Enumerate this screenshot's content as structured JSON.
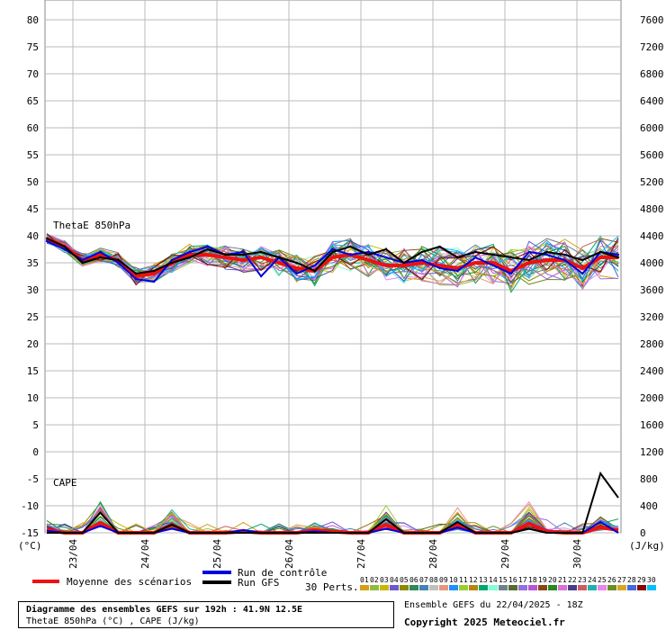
{
  "chart_data": {
    "type": "line",
    "title": "Diagramme des ensembles GEFS sur 192h : 41.9N 12.5E",
    "subtitle": "ThetaE 850hPa (°C) , CAPE (J/kg)",
    "source": "Ensemble GEFS du 22/04/2025 - 18Z",
    "copyright": "Copyright 2025 Meteociel.fr",
    "panel_label_thetae": "ThetaE 850hPa",
    "panel_label_cape": "CAPE",
    "left_axis": {
      "unit": "(°C)",
      "ylim": [
        -15,
        80
      ],
      "ticks": [
        -15,
        -10,
        -5,
        0,
        5,
        10,
        15,
        20,
        25,
        30,
        35,
        40,
        45,
        50,
        55,
        60,
        65,
        70,
        75,
        80
      ]
    },
    "right_axis": {
      "unit": "(J/kg)",
      "ylim": [
        0,
        7600
      ],
      "ticks": [
        0,
        400,
        800,
        1200,
        1600,
        2000,
        2400,
        2800,
        3200,
        3600,
        4000,
        4400,
        4800,
        5200,
        5600,
        6000,
        6400,
        6800,
        7200,
        7600
      ]
    },
    "dates": [
      "23/04",
      "24/04",
      "25/04",
      "26/04",
      "27/04",
      "28/04",
      "29/04",
      "30/04"
    ],
    "x_hours": [
      0,
      6,
      12,
      18,
      24,
      30,
      36,
      42,
      48,
      54,
      60,
      66,
      72,
      78,
      84,
      90,
      96,
      102,
      108,
      114,
      120,
      126,
      132,
      138,
      144,
      150,
      156,
      162,
      168,
      174,
      180,
      186,
      192
    ],
    "legend": {
      "mean": "Moyenne des scénarios",
      "control": "Run de contrôle",
      "gfs": "Run GFS",
      "perts": "30 Perts."
    },
    "members": [
      "01",
      "02",
      "03",
      "04",
      "05",
      "06",
      "07",
      "08",
      "09",
      "10",
      "11",
      "12",
      "13",
      "14",
      "15",
      "16",
      "17",
      "18",
      "19",
      "20",
      "21",
      "22",
      "23",
      "24",
      "25",
      "26",
      "27",
      "28",
      "29",
      "30"
    ],
    "member_colors": [
      "#d4a017",
      "#8fbc3f",
      "#c9b800",
      "#6a5acd",
      "#8b8b00",
      "#2e8b57",
      "#4682b4",
      "#c0c0c0",
      "#e9967a",
      "#1e90ff",
      "#9acd32",
      "#b8860b",
      "#00a86b",
      "#7fffd4",
      "#708090",
      "#556b2f",
      "#9370db",
      "#ba55d3",
      "#8b4513",
      "#228b22",
      "#da70d6",
      "#483d8b",
      "#cd5c5c",
      "#20b2aa",
      "#ee82ee",
      "#6b8e23",
      "#daa520",
      "#4169e1",
      "#8b0000",
      "#00bfff"
    ],
    "series_thetae": [
      {
        "name": "Moyenne des scénarios",
        "color": "#ee1111",
        "values": [
          39.5,
          38,
          35.5,
          36.5,
          35.5,
          32.5,
          33,
          35,
          36.5,
          36.5,
          36,
          35.5,
          36,
          35,
          34,
          33.5,
          36,
          36.5,
          35.5,
          34.5,
          34.5,
          35,
          34.5,
          34,
          35,
          35,
          33.5,
          35,
          35.5,
          35.5,
          34,
          36,
          36
        ]
      },
      {
        "name": "Run de contrôle",
        "color": "#0000dd",
        "values": [
          39,
          37.5,
          35.5,
          37,
          35,
          32,
          31.5,
          35.5,
          37,
          38,
          36.5,
          37,
          32.5,
          36,
          33,
          34.5,
          37.5,
          36.5,
          37,
          36,
          35,
          35.5,
          34,
          33.5,
          36,
          34.5,
          33,
          37,
          36.5,
          35.5,
          33,
          37,
          36.5
        ]
      },
      {
        "name": "Run GFS",
        "color": "#000000",
        "values": [
          39.5,
          38,
          35,
          36,
          35.5,
          33,
          33.5,
          35,
          36,
          37.5,
          36.5,
          36.5,
          37,
          36,
          35,
          33.5,
          37,
          38,
          36.5,
          37.5,
          35,
          37,
          38,
          36,
          37,
          36.5,
          36,
          35.5,
          37,
          36.5,
          35.5,
          37,
          36
        ]
      }
    ],
    "series_cape": [
      {
        "name": "Moyenne des scénarios",
        "color": "#ee1111",
        "values": [
          50,
          0,
          0,
          150,
          0,
          0,
          0,
          120,
          0,
          0,
          0,
          20,
          0,
          0,
          0,
          40,
          20,
          0,
          0,
          120,
          0,
          0,
          0,
          120,
          0,
          0,
          0,
          140,
          20,
          0,
          0,
          80,
          40
        ]
      },
      {
        "name": "Run de contrôle",
        "color": "#0000dd",
        "values": [
          30,
          0,
          0,
          100,
          0,
          0,
          0,
          60,
          0,
          0,
          0,
          40,
          0,
          0,
          0,
          20,
          0,
          0,
          0,
          60,
          0,
          0,
          0,
          80,
          0,
          0,
          0,
          60,
          0,
          0,
          0,
          160,
          0
        ]
      },
      {
        "name": "Run GFS",
        "color": "#000000",
        "values": [
          0,
          0,
          0,
          300,
          0,
          0,
          0,
          120,
          0,
          0,
          0,
          0,
          0,
          0,
          0,
          0,
          0,
          0,
          0,
          200,
          0,
          0,
          0,
          160,
          0,
          0,
          0,
          60,
          0,
          0,
          0,
          880,
          520
        ]
      }
    ]
  }
}
